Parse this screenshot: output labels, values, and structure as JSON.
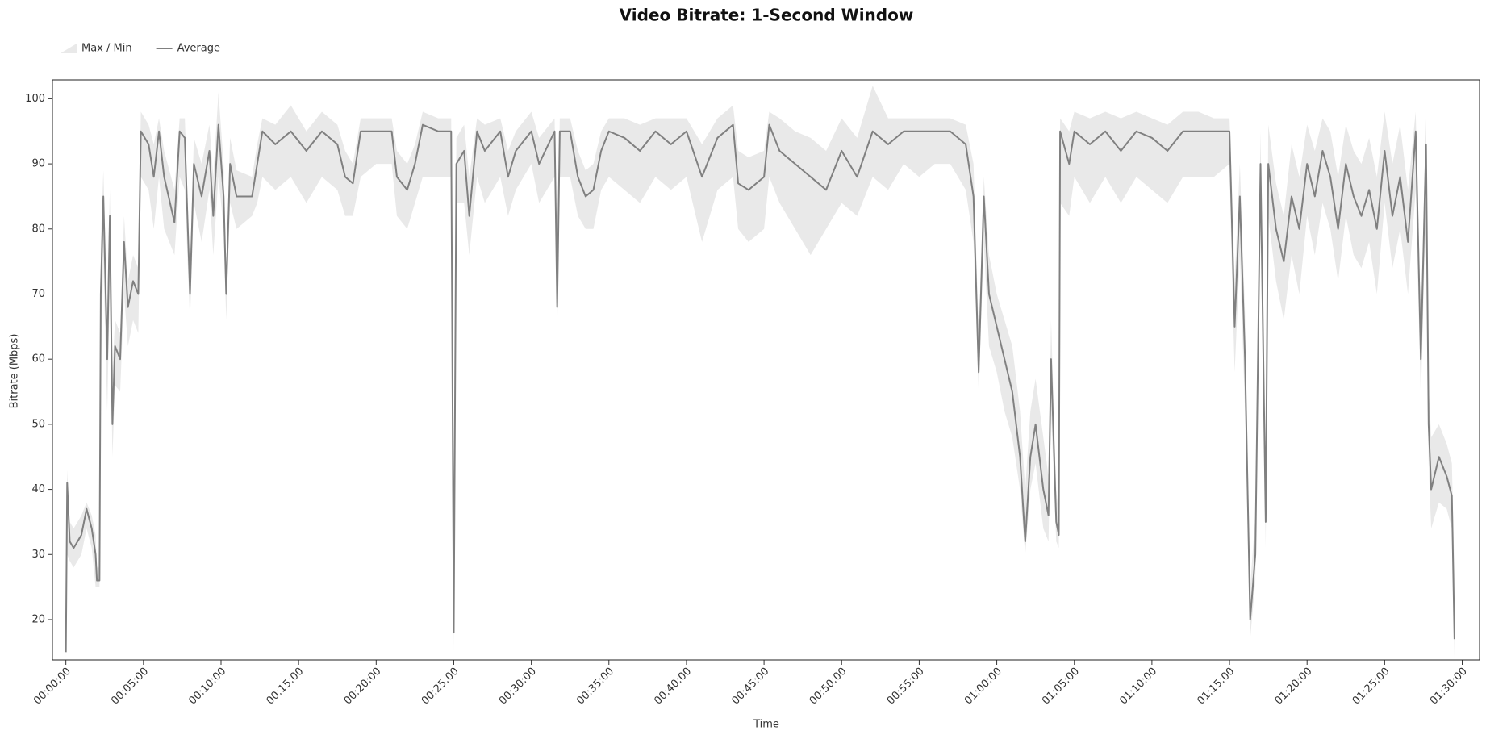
{
  "chart_data": {
    "type": "band-line",
    "title": "Video Bitrate: 1-Second Window",
    "x_label": "Time",
    "y_label": "Bitrate (Mbps)",
    "legend": "top-left",
    "x": [
      0,
      5,
      15,
      30,
      60,
      80,
      100,
      115,
      120,
      130,
      135,
      145,
      160,
      170,
      180,
      190,
      210,
      225,
      240,
      260,
      280,
      290,
      320,
      340,
      360,
      380,
      420,
      440,
      460,
      480,
      495,
      525,
      555,
      570,
      590,
      610,
      620,
      635,
      660,
      720,
      740,
      760,
      810,
      870,
      930,
      990,
      1050,
      1080,
      1110,
      1140,
      1200,
      1260,
      1280,
      1320,
      1350,
      1380,
      1440,
      1490,
      1500,
      1510,
      1540,
      1560,
      1590,
      1620,
      1680,
      1710,
      1740,
      1800,
      1830,
      1890,
      1900,
      1910,
      1950,
      1980,
      2010,
      2040,
      2070,
      2100,
      2160,
      2220,
      2280,
      2340,
      2400,
      2460,
      2520,
      2580,
      2600,
      2640,
      2700,
      2720,
      2760,
      2820,
      2880,
      2940,
      3000,
      3060,
      3120,
      3180,
      3240,
      3300,
      3360,
      3420,
      3480,
      3510,
      3530,
      3550,
      3570,
      3600,
      3630,
      3660,
      3690,
      3710,
      3730,
      3750,
      3780,
      3800,
      3810,
      3830,
      3840,
      3845,
      3880,
      3900,
      3960,
      4020,
      4080,
      4140,
      4200,
      4260,
      4320,
      4380,
      4440,
      4500,
      4510,
      4520,
      4540,
      4560,
      4580,
      4600,
      4620,
      4640,
      4650,
      4680,
      4710,
      4740,
      4770,
      4800,
      4830,
      4860,
      4890,
      4920,
      4950,
      4980,
      5010,
      5040,
      5070,
      5100,
      5130,
      5160,
      5190,
      5220,
      5240,
      5260,
      5270,
      5280,
      5310,
      5340,
      5360,
      5370
    ],
    "series": [
      {
        "name": "Max / Min",
        "color": "#e9e9e9",
        "upper": [
          18,
          43,
          35,
          34,
          36,
          38,
          36,
          33,
          28,
          28,
          78,
          89,
          68,
          86,
          58,
          66,
          64,
          82,
          72,
          76,
          74,
          98,
          96,
          93,
          97,
          92,
          86,
          97,
          97,
          74,
          94,
          90,
          96,
          88,
          101,
          90,
          74,
          94,
          89,
          88,
          93,
          97,
          96,
          99,
          95,
          98,
          96,
          92,
          90,
          97,
          97,
          97,
          92,
          90,
          93,
          98,
          97,
          97,
          22,
          94,
          96,
          88,
          97,
          96,
          97,
          92,
          95,
          98,
          94,
          97,
          72,
          97,
          97,
          92,
          89,
          90,
          95,
          97,
          97,
          96,
          97,
          97,
          97,
          93,
          97,
          99,
          92,
          91,
          92,
          98,
          97,
          95,
          94,
          92,
          97,
          94,
          102,
          97,
          97,
          97,
          97,
          97,
          96,
          90,
          64,
          88,
          76,
          70,
          66,
          62,
          52,
          40,
          52,
          57,
          48,
          42,
          66,
          40,
          36,
          97,
          95,
          98,
          97,
          98,
          97,
          98,
          97,
          96,
          98,
          98,
          97,
          97,
          86,
          72,
          90,
          67,
          25,
          36,
          95,
          40,
          96,
          87,
          82,
          93,
          88,
          96,
          92,
          97,
          95,
          88,
          96,
          92,
          90,
          94,
          88,
          98,
          90,
          96,
          86,
          98,
          66,
          97,
          56,
          48,
          50,
          47,
          44,
          27
        ],
        "lower": [
          14,
          30,
          29,
          28,
          30,
          34,
          31,
          25,
          25,
          25,
          58,
          75,
          52,
          72,
          45,
          56,
          55,
          70,
          62,
          66,
          64,
          88,
          86,
          80,
          88,
          80,
          76,
          88,
          86,
          66,
          84,
          78,
          86,
          76,
          88,
          80,
          66,
          84,
          80,
          82,
          84,
          88,
          86,
          88,
          84,
          88,
          86,
          82,
          82,
          88,
          90,
          90,
          82,
          80,
          84,
          88,
          88,
          88,
          15,
          84,
          84,
          76,
          88,
          84,
          88,
          82,
          86,
          90,
          84,
          88,
          64,
          88,
          88,
          82,
          80,
          80,
          86,
          88,
          86,
          84,
          88,
          86,
          88,
          78,
          86,
          88,
          80,
          78,
          80,
          88,
          84,
          80,
          76,
          80,
          84,
          82,
          88,
          86,
          90,
          88,
          90,
          90,
          86,
          78,
          55,
          78,
          62,
          58,
          52,
          48,
          40,
          30,
          40,
          44,
          34,
          32,
          52,
          32,
          31,
          84,
          82,
          88,
          84,
          88,
          84,
          88,
          86,
          84,
          88,
          88,
          88,
          90,
          72,
          58,
          76,
          52,
          17,
          26,
          82,
          31,
          82,
          72,
          66,
          76,
          70,
          82,
          76,
          84,
          80,
          72,
          82,
          76,
          74,
          78,
          70,
          84,
          74,
          80,
          70,
          86,
          54,
          84,
          44,
          34,
          38,
          37,
          34,
          14
        ]
      },
      {
        "name": "Average",
        "color": "#808080",
        "values": [
          15,
          41,
          32,
          31,
          33,
          37,
          34,
          30,
          26,
          26,
          70,
          85,
          60,
          82,
          50,
          62,
          60,
          78,
          68,
          72,
          70,
          95,
          93,
          88,
          95,
          88,
          81,
          95,
          94,
          70,
          90,
          85,
          92,
          82,
          96,
          85,
          70,
          90,
          85,
          85,
          90,
          95,
          93,
          95,
          92,
          95,
          93,
          88,
          87,
          95,
          95,
          95,
          88,
          86,
          90,
          96,
          95,
          95,
          18,
          90,
          92,
          82,
          95,
          92,
          95,
          88,
          92,
          95,
          90,
          95,
          68,
          95,
          95,
          88,
          85,
          86,
          92,
          95,
          94,
          92,
          95,
          93,
          95,
          88,
          94,
          96,
          87,
          86,
          88,
          96,
          92,
          90,
          88,
          86,
          92,
          88,
          95,
          93,
          95,
          95,
          95,
          95,
          93,
          85,
          58,
          85,
          70,
          65,
          60,
          55,
          45,
          32,
          45,
          50,
          40,
          36,
          60,
          35,
          33,
          95,
          90,
          95,
          93,
          95,
          92,
          95,
          94,
          92,
          95,
          95,
          95,
          95,
          80,
          65,
          85,
          60,
          20,
          30,
          90,
          35,
          90,
          80,
          75,
          85,
          80,
          90,
          85,
          92,
          88,
          80,
          90,
          85,
          82,
          86,
          80,
          92,
          82,
          88,
          78,
          95,
          60,
          93,
          50,
          40,
          45,
          42,
          39,
          17
        ]
      }
    ],
    "xlim": [
      -52,
      5467
    ],
    "xticks": [
      {
        "value": 0,
        "label": "00:00:00"
      },
      {
        "value": 300,
        "label": "00:05:00"
      },
      {
        "value": 600,
        "label": "00:10:00"
      },
      {
        "value": 900,
        "label": "00:15:00"
      },
      {
        "value": 1200,
        "label": "00:20:00"
      },
      {
        "value": 1500,
        "label": "00:25:00"
      },
      {
        "value": 1800,
        "label": "00:30:00"
      },
      {
        "value": 2100,
        "label": "00:35:00"
      },
      {
        "value": 2400,
        "label": "00:40:00"
      },
      {
        "value": 2700,
        "label": "00:45:00"
      },
      {
        "value": 3000,
        "label": "00:50:00"
      },
      {
        "value": 3300,
        "label": "00:55:00"
      },
      {
        "value": 3600,
        "label": "01:00:00"
      },
      {
        "value": 3900,
        "label": "01:05:00"
      },
      {
        "value": 4200,
        "label": "01:10:00"
      },
      {
        "value": 4500,
        "label": "01:15:00"
      },
      {
        "value": 4800,
        "label": "01:20:00"
      },
      {
        "value": 5100,
        "label": "01:25:00"
      },
      {
        "value": 5400,
        "label": "01:30:00"
      }
    ],
    "ylim": [
      13.8,
      102.9
    ],
    "yticks": [
      20,
      30,
      40,
      50,
      60,
      70,
      80,
      90,
      100
    ]
  }
}
